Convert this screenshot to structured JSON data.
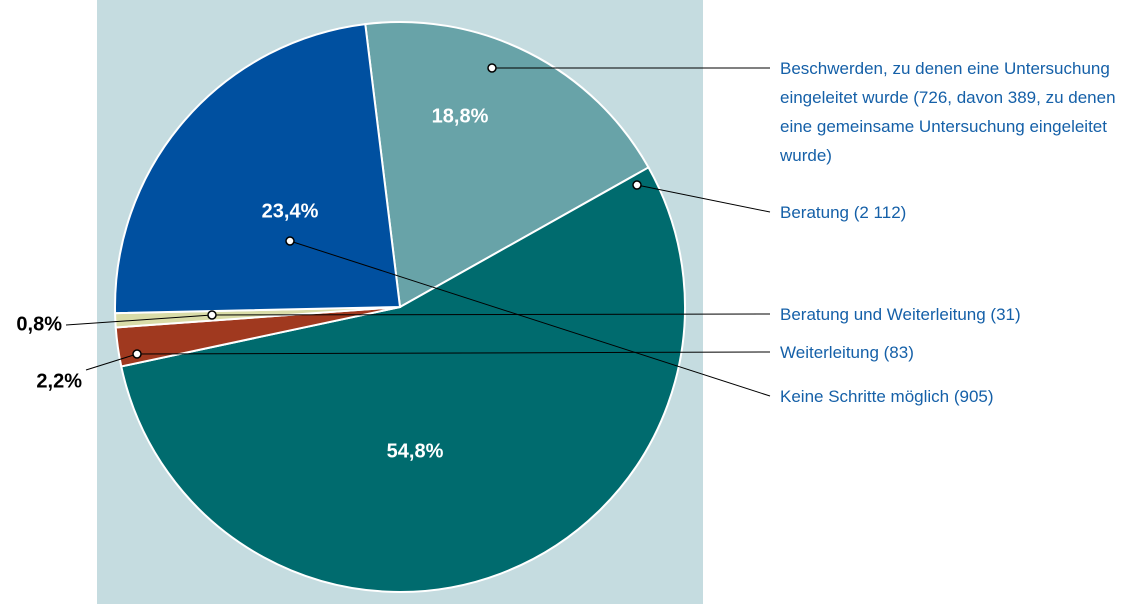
{
  "chart_data": {
    "type": "pie",
    "categories": [
      "Beschwerden, zu denen eine Untersuchung eingeleitet wurde (726, davon 389, zu denen eine gemeinsame Untersuchung eingeleitet wurde)",
      "Beratung (2 112)",
      "Weiterleitung (83)",
      "Beratung und Weiterleitung (31)",
      "Keine Schritte möglich (905)"
    ],
    "values": [
      18.8,
      54.8,
      2.2,
      0.8,
      23.4
    ],
    "value_labels": [
      "18,8%",
      "54,8%",
      "2,2%",
      "0,8%",
      "23,4%"
    ],
    "colors": [
      "#68a3a8",
      "#006b6e",
      "#a0391f",
      "#d9dca8",
      "#0050a0"
    ]
  }
}
